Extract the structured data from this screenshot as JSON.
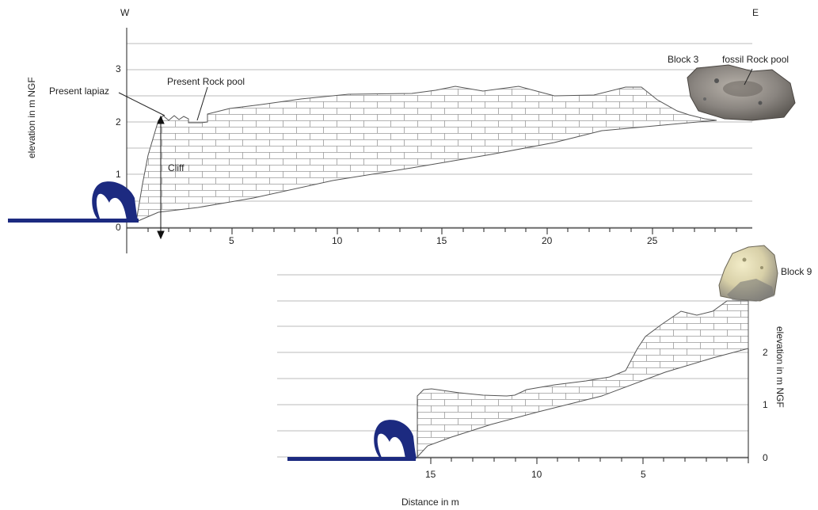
{
  "top_profile": {
    "west_label": "W",
    "east_label": "E",
    "y_axis_label": "elevation in m NGF",
    "y_ticks": [
      "0",
      "1",
      "2",
      "3"
    ],
    "x_ticks": [
      "5",
      "10",
      "15",
      "20",
      "25"
    ],
    "annotations": {
      "lapiaz": "Present lapiaz",
      "rock_pool": "Present Rock pool",
      "cliff": "Cliff",
      "block": "Block 3",
      "fossil_pool": "fossil Rock pool"
    }
  },
  "bottom_profile": {
    "y_axis_label": "elevation in m NGF",
    "y_ticks": [
      "0",
      "1",
      "2"
    ],
    "x_ticks": [
      "15",
      "10",
      "5"
    ],
    "annotations": {
      "block": "Block 9"
    }
  },
  "x_axis_label": "Distance in m",
  "colors": {
    "wave": "#1c2a80",
    "grid": "#bbbbbb",
    "rock_top": "#8a8580",
    "rock_bottom": "#d8d0a8"
  }
}
